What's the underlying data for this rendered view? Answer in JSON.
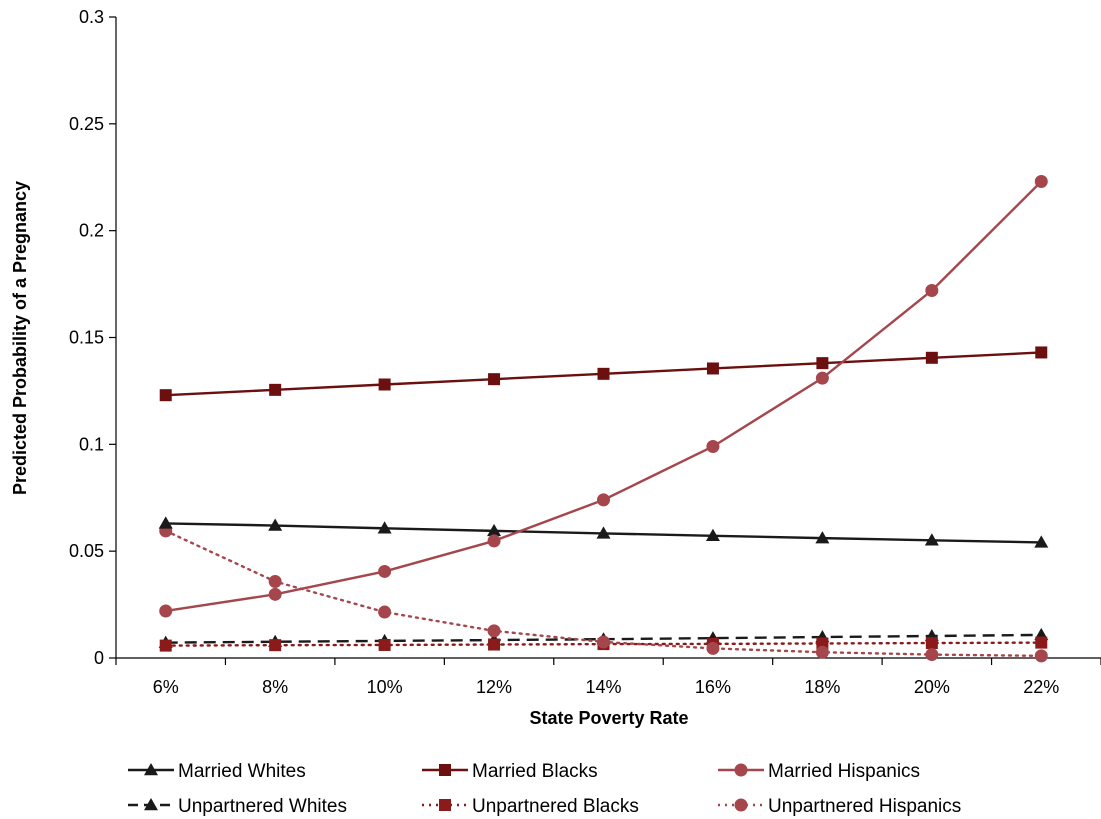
{
  "chart_data": {
    "type": "line",
    "title": "",
    "xlabel": "State Poverty Rate",
    "ylabel": "Predicted Probability of a Pregnancy",
    "categories": [
      "6%",
      "8%",
      "10%",
      "12%",
      "14%",
      "16%",
      "18%",
      "20%",
      "22%"
    ],
    "ylim": [
      0,
      0.3
    ],
    "yticks": [
      "0",
      "0.05",
      "0.1",
      "0.15",
      "0.2",
      "0.25",
      "0.3"
    ],
    "grid": false,
    "legend_position": "bottom",
    "series": [
      {
        "name": "Married Whites",
        "color": "#1a1a1a",
        "marker": "triangle",
        "dash": "solid",
        "values": [
          0.063,
          0.062,
          0.0607,
          0.0595,
          0.0583,
          0.0572,
          0.0561,
          0.0551,
          0.0541
        ]
      },
      {
        "name": "Married Blacks",
        "color": "#6b0f0f",
        "marker": "square",
        "dash": "solid",
        "values": [
          0.123,
          0.1255,
          0.128,
          0.1305,
          0.133,
          0.1355,
          0.138,
          0.1405,
          0.143
        ]
      },
      {
        "name": "Married Hispanics",
        "color": "#a5464d",
        "marker": "circle",
        "dash": "solid",
        "values": [
          0.022,
          0.0298,
          0.0405,
          0.0548,
          0.074,
          0.099,
          0.131,
          0.172,
          0.223
        ]
      },
      {
        "name": "Unpartnered Whites",
        "color": "#1a1a1a",
        "marker": "triangle",
        "dash": "dashed",
        "values": [
          0.0072,
          0.0076,
          0.008,
          0.0084,
          0.0088,
          0.0093,
          0.0098,
          0.0103,
          0.0108
        ]
      },
      {
        "name": "Unpartnered Blacks",
        "color": "#8b1a1a",
        "marker": "square",
        "dash": "dotted",
        "values": [
          0.0058,
          0.006,
          0.0061,
          0.0063,
          0.0065,
          0.0066,
          0.0068,
          0.007,
          0.0072
        ]
      },
      {
        "name": "Unpartnered Hispanics",
        "color": "#a5464d",
        "marker": "circle",
        "dash": "dotted",
        "values": [
          0.0595,
          0.0358,
          0.0215,
          0.0127,
          0.0075,
          0.0045,
          0.0027,
          0.0016,
          0.001
        ]
      }
    ]
  }
}
